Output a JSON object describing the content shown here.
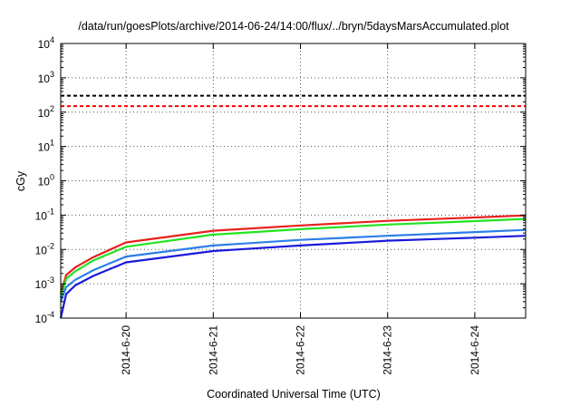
{
  "chart_data": {
    "type": "line",
    "title": "/data/run/goesPlots/archive/2014-06-24/14:00/flux/../bryn/5daysMarsAccumulated.plot",
    "xlabel": "Coordinated Universal Time (UTC)",
    "ylabel": "cGy",
    "yscale": "log",
    "ylim": [
      0.0001,
      10000
    ],
    "xlim": [
      "2014-06-19 06:00",
      "2014-06-24 14:00"
    ],
    "xticks": [
      {
        "value": "2014-06-20 00:00",
        "label": "2014-6-20"
      },
      {
        "value": "2014-06-21 00:00",
        "label": "2014-6-21"
      },
      {
        "value": "2014-06-22 00:00",
        "label": "2014-6-22"
      },
      {
        "value": "2014-06-23 00:00",
        "label": "2014-6-23"
      },
      {
        "value": "2014-06-24 00:00",
        "label": "2014-6-24"
      }
    ],
    "yticks": [
      {
        "value": 0.0001,
        "base": "10",
        "exp": "-4"
      },
      {
        "value": 0.001,
        "base": "10",
        "exp": "-3"
      },
      {
        "value": 0.01,
        "base": "10",
        "exp": "-2"
      },
      {
        "value": 0.1,
        "base": "10",
        "exp": "-1"
      },
      {
        "value": 1,
        "base": "10",
        "exp": "0"
      },
      {
        "value": 10,
        "base": "10",
        "exp": "1"
      },
      {
        "value": 100,
        "base": "10",
        "exp": "2"
      },
      {
        "value": 1000,
        "base": "10",
        "exp": "3"
      },
      {
        "value": 10000,
        "base": "10",
        "exp": "4"
      }
    ],
    "grid": "dotted-major",
    "legend": "none",
    "reference_lines": [
      {
        "y": 300,
        "color": "#000000",
        "style": "dashed"
      },
      {
        "y": 150,
        "color": "#ff0000",
        "style": "dashed"
      }
    ],
    "series": [
      {
        "color": "#e8201c",
        "x": [
          "2014-06-19 06:00",
          "2014-06-19 07:30",
          "2014-06-19 10:00",
          "2014-06-19 15:00",
          "2014-06-20 00:00",
          "2014-06-21 00:00",
          "2014-06-22 00:00",
          "2014-06-23 00:00",
          "2014-06-24 00:00",
          "2014-06-24 14:00"
        ],
        "y": [
          0.0005,
          0.0018,
          0.003,
          0.006,
          0.016,
          0.035,
          0.05,
          0.068,
          0.085,
          0.098
        ]
      },
      {
        "color": "#22e322",
        "x": [
          "2014-06-19 06:00",
          "2014-06-19 07:30",
          "2014-06-19 10:00",
          "2014-06-19 15:00",
          "2014-06-20 00:00",
          "2014-06-21 00:00",
          "2014-06-22 00:00",
          "2014-06-23 00:00",
          "2014-06-24 00:00",
          "2014-06-24 14:00"
        ],
        "y": [
          0.0004,
          0.0014,
          0.0023,
          0.0048,
          0.012,
          0.027,
          0.039,
          0.053,
          0.067,
          0.078
        ]
      },
      {
        "color": "#2b7fe8",
        "x": [
          "2014-06-19 06:00",
          "2014-06-19 07:30",
          "2014-06-19 10:00",
          "2014-06-19 15:00",
          "2014-06-20 00:00",
          "2014-06-21 00:00",
          "2014-06-22 00:00",
          "2014-06-23 00:00",
          "2014-06-24 00:00",
          "2014-06-24 14:00"
        ],
        "y": [
          0.0003,
          0.0008,
          0.0013,
          0.0025,
          0.0062,
          0.013,
          0.019,
          0.025,
          0.032,
          0.037
        ]
      },
      {
        "color": "#1a1adc",
        "x": [
          "2014-06-19 06:00",
          "2014-06-19 07:30",
          "2014-06-19 10:00",
          "2014-06-19 15:00",
          "2014-06-20 00:00",
          "2014-06-21 00:00",
          "2014-06-22 00:00",
          "2014-06-23 00:00",
          "2014-06-24 00:00",
          "2014-06-24 14:00"
        ],
        "y": [
          0.0001,
          0.0005,
          0.0009,
          0.0017,
          0.0042,
          0.009,
          0.013,
          0.018,
          0.022,
          0.025
        ]
      }
    ]
  }
}
